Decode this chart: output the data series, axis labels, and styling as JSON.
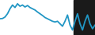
{
  "x": [
    0,
    1,
    2,
    3,
    4,
    5,
    6,
    7,
    8,
    9,
    10,
    11,
    12,
    13,
    14,
    15,
    16,
    17,
    18,
    19,
    20,
    21,
    22,
    23,
    24,
    25,
    26,
    27,
    28,
    29,
    30,
    31,
    32,
    33,
    34,
    35,
    36,
    37,
    38
  ],
  "y": [
    6.5,
    6.6,
    7.2,
    8.5,
    10.5,
    12.0,
    11.0,
    12.5,
    11.5,
    12.0,
    11.2,
    11.8,
    11.0,
    10.5,
    10.0,
    9.2,
    8.5,
    7.8,
    7.0,
    6.5,
    6.0,
    5.5,
    5.2,
    5.5,
    4.5,
    3.5,
    5.5,
    8.0,
    4.0,
    2.0,
    5.5,
    8.5,
    4.5,
    2.0,
    5.5,
    8.0,
    4.5,
    2.5,
    4.0
  ],
  "line_color": "#2196c4",
  "linewidth": 1.3,
  "bg_left_color": "#ffffff",
  "bg_right_color": "#1a1a1a",
  "bg_split_x": 29.5,
  "ylim": [
    0,
    14
  ],
  "xlim": [
    0,
    38
  ]
}
